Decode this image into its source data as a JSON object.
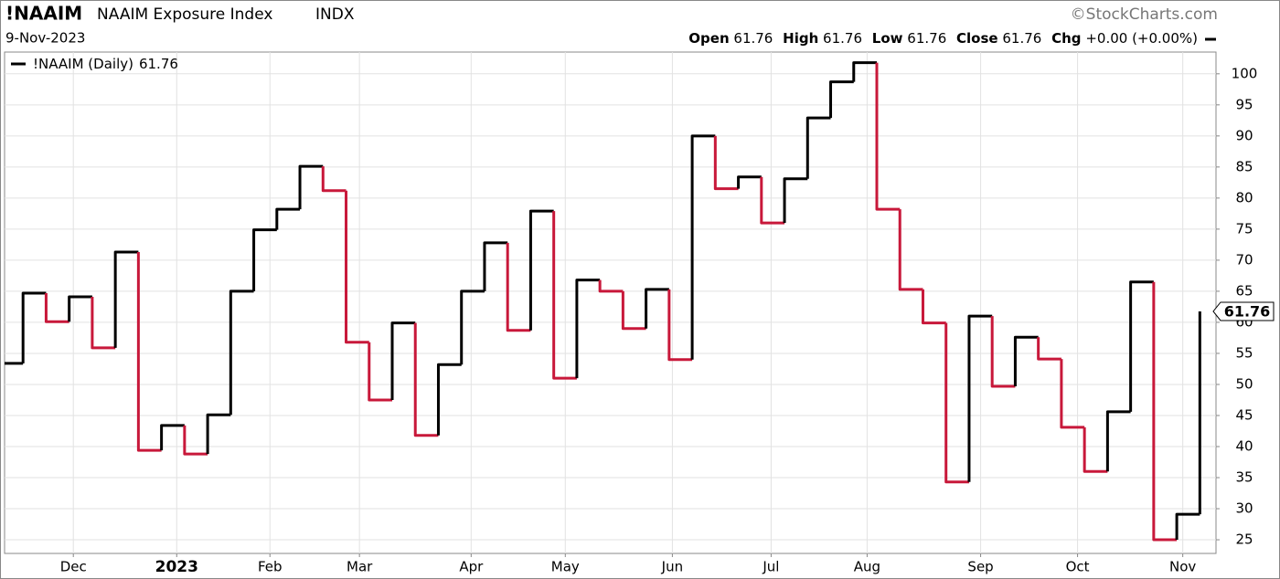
{
  "header": {
    "symbol": "!NAAIM",
    "name": "NAAIM Exposure Index",
    "exchange": "INDX",
    "source": "©StockCharts.com",
    "date": "9-Nov-2023",
    "open_label": "Open",
    "open": 61.76,
    "high_label": "High",
    "high": 61.76,
    "low_label": "Low",
    "low": 61.76,
    "close_label": "Close",
    "close": 61.76,
    "change_label": "Chg",
    "change": "+0.00 (+0.00%)"
  },
  "chart_data": {
    "type": "step-line",
    "series": [
      {
        "name": "!NAAIM (Daily)",
        "up_color": "#000000",
        "down_color": "#c8183a",
        "values": [
          53.4,
          64.7,
          60.1,
          64.1,
          55.9,
          71.3,
          39.4,
          43.4,
          38.8,
          45.1,
          65.0,
          74.9,
          78.2,
          85.1,
          81.2,
          56.8,
          47.5,
          59.9,
          41.8,
          53.2,
          65.0,
          72.8,
          58.7,
          77.9,
          51.0,
          66.8,
          65.0,
          59.0,
          65.3,
          54.0,
          90.0,
          81.5,
          83.4,
          76.0,
          83.1,
          92.9,
          98.7,
          101.8,
          78.2,
          65.3,
          59.9,
          34.3,
          61.0,
          49.7,
          57.6,
          54.1,
          43.1,
          36.0,
          45.6,
          66.5,
          25.0,
          29.1,
          61.76
        ]
      }
    ],
    "xlim": [
      0.2,
      52.7
    ],
    "xticks": [
      {
        "value": 3.18,
        "label": "Dec"
      },
      {
        "value": 7.66,
        "label": "2023"
      },
      {
        "value": 11.7,
        "label": "Feb"
      },
      {
        "value": 15.58,
        "label": "Mar"
      },
      {
        "value": 20.42,
        "label": "Apr"
      },
      {
        "value": 24.5,
        "label": "May"
      },
      {
        "value": 29.14,
        "label": "Jun"
      },
      {
        "value": 33.42,
        "label": "Jul"
      },
      {
        "value": 37.58,
        "label": "Aug"
      },
      {
        "value": 42.5,
        "label": "Sep"
      },
      {
        "value": 46.7,
        "label": "Oct"
      },
      {
        "value": 51.26,
        "label": "Nov"
      }
    ],
    "ylim": [
      22.8,
      103.5
    ],
    "yticks": [
      25,
      30,
      35,
      40,
      45,
      50,
      55,
      60,
      65,
      70,
      75,
      80,
      85,
      90,
      95,
      100
    ],
    "grid": true
  }
}
